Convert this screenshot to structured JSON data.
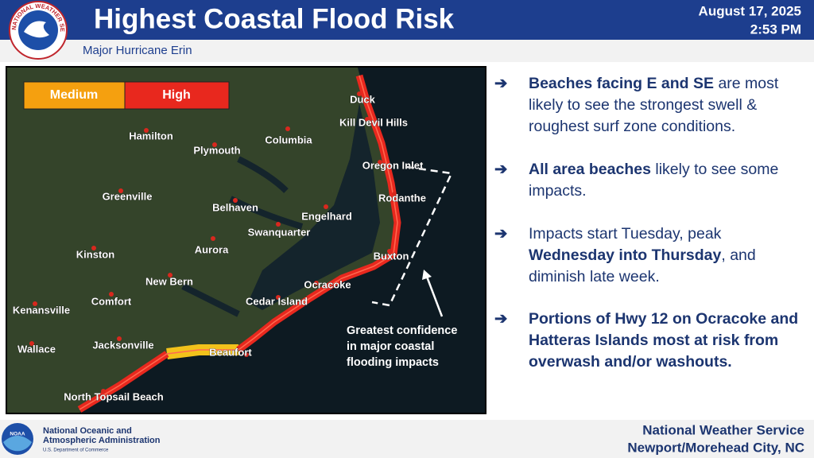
{
  "header": {
    "title": "Highest Coastal Flood Risk",
    "date": "August 17, 2025",
    "time": "2:53 PM",
    "subtitle": "Major Hurricane Erin",
    "logo_text": "NATIONAL WEATHER SERVICE"
  },
  "map": {
    "legend": [
      "Medium",
      "High"
    ],
    "places": [
      "Duck",
      "Kill Devil Hills",
      "Columbia",
      "Hamilton",
      "Plymouth",
      "Oregon Inlet",
      "Greenville",
      "Rodanthe",
      "Belhaven",
      "Engelhard",
      "Swanquarter",
      "Kinston",
      "Aurora",
      "Buxton",
      "New Bern",
      "Ocracoke",
      "Comfort",
      "Cedar Island",
      "Kenansville",
      "Jacksonville",
      "Wallace",
      "Beaufort",
      "North Topsail Beach"
    ],
    "annotation": [
      "Greatest confidence",
      "in major coastal",
      "flooding impacts"
    ]
  },
  "bullets": [
    {
      "parts": [
        {
          "text": "Beaches facing E and SE",
          "bold": true
        },
        {
          "text": "are most likely to see the strongest swell & roughest surf zone conditions.",
          "bold": false
        }
      ]
    },
    {
      "parts": [
        {
          "text": "All area beaches",
          "bold": true
        },
        {
          "text": "likely to see some impacts.",
          "bold": false
        }
      ]
    },
    {
      "parts": [
        {
          "text": "Impacts start Tuesday, peak",
          "bold": false
        },
        {
          "text": "Wednesday into Thursday",
          "bold": true
        },
        {
          "text": ", and diminish late week.",
          "bold": false
        }
      ]
    },
    {
      "parts": [
        {
          "text": "Portions of Hwy 12 on Ocracoke and Hatteras Islands most at risk from overwash and/or washouts.",
          "bold": true
        }
      ]
    }
  ],
  "footer": {
    "logo_text": "NOAA",
    "agency": [
      "National Oceanic and",
      "Atmospheric Administration"
    ],
    "department": "U.S. Department of Commerce",
    "office": [
      "National Weather Service",
      "Newport/Morehead City, NC"
    ]
  }
}
